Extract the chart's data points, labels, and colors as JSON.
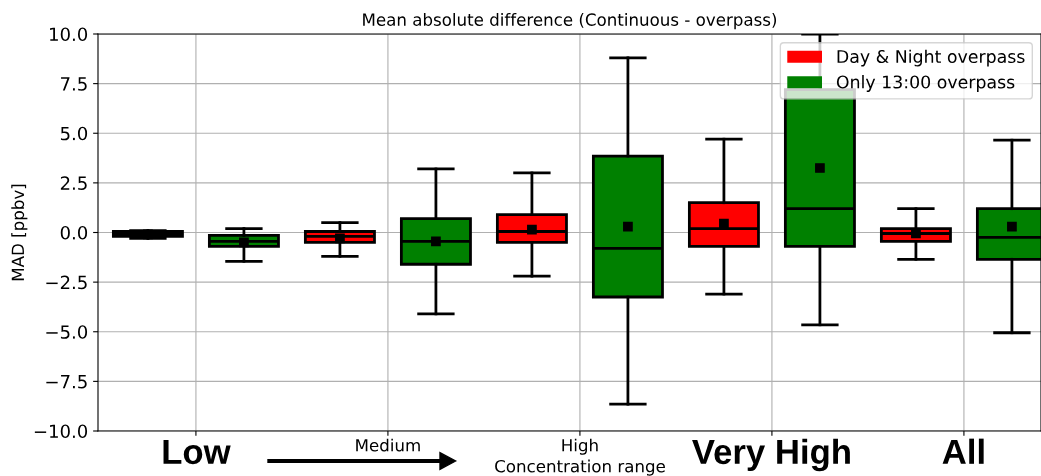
{
  "chart_data": {
    "type": "box",
    "title": "Mean absolute difference (Continuous - overpass)",
    "ylabel": "MAD [ppbv]",
    "xlabel": "Concentration range",
    "categories": [
      "Low",
      "Medium",
      "High",
      "Very High",
      "All"
    ],
    "series": [
      {
        "name": "Day & Night overpass",
        "color": "#ff0000",
        "boxes": [
          {
            "low": -0.3,
            "q1": -0.2,
            "median": -0.1,
            "q3": 0.05,
            "high": 0.1,
            "mean": -0.1
          },
          {
            "low": -1.2,
            "q1": -0.5,
            "median": -0.2,
            "q3": 0.05,
            "high": 0.5,
            "mean": -0.3
          },
          {
            "low": -2.2,
            "q1": -0.5,
            "median": 0.05,
            "q3": 0.9,
            "high": 3.0,
            "mean": 0.15
          },
          {
            "low": -3.1,
            "q1": -0.7,
            "median": 0.2,
            "q3": 1.5,
            "high": 4.7,
            "mean": 0.45
          },
          {
            "low": -1.35,
            "q1": -0.45,
            "median": -0.05,
            "q3": 0.2,
            "high": 1.2,
            "mean": -0.05
          }
        ]
      },
      {
        "name": "Only 13:00 overpass",
        "color": "#008000",
        "boxes": [
          {
            "low": -1.45,
            "q1": -0.7,
            "median": -0.45,
            "q3": -0.15,
            "high": 0.2,
            "mean": -0.5
          },
          {
            "low": -4.1,
            "q1": -1.6,
            "median": -0.45,
            "q3": 0.7,
            "high": 3.2,
            "mean": -0.45
          },
          {
            "low": -8.65,
            "q1": -3.25,
            "median": -0.8,
            "q3": 3.85,
            "high": 8.8,
            "mean": 0.3
          },
          {
            "low": -4.65,
            "q1": -0.7,
            "median": 1.2,
            "q3": 7.2,
            "high": 10.0,
            "mean": 3.25
          },
          {
            "low": -5.05,
            "q1": -1.35,
            "median": -0.25,
            "q3": 1.2,
            "high": 4.65,
            "mean": 0.3
          }
        ]
      }
    ],
    "ylim": [
      -10,
      10
    ],
    "yticks": [
      {
        "value": -10,
        "label": "−10.0"
      },
      {
        "value": -7.5,
        "label": "−7.5"
      },
      {
        "value": -5,
        "label": "−5.0"
      },
      {
        "value": -2.5,
        "label": "−2.5"
      },
      {
        "value": 0,
        "label": "0.0"
      },
      {
        "value": 2.5,
        "label": "2.5"
      },
      {
        "value": 5,
        "label": "5.0"
      },
      {
        "value": 7.5,
        "label": "7.5"
      },
      {
        "value": 10,
        "label": "10.0"
      }
    ],
    "grid": true,
    "legend": "top right",
    "marker": "square"
  }
}
